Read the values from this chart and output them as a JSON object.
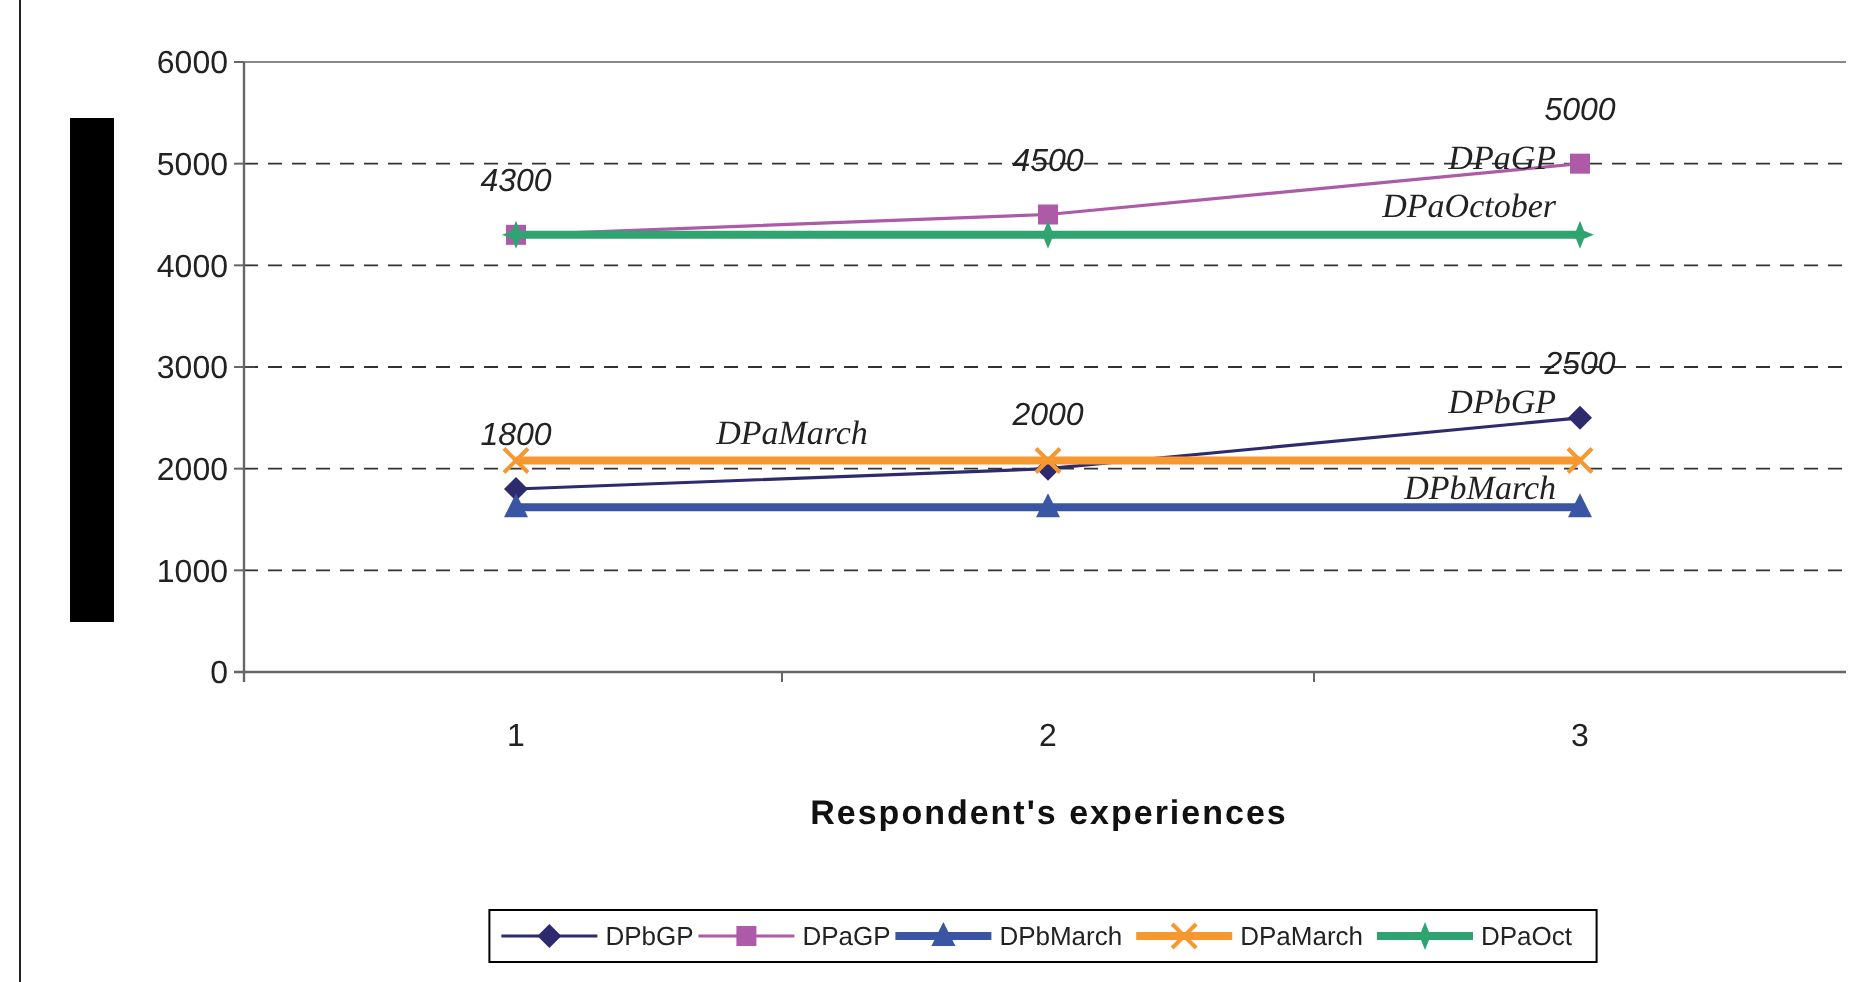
{
  "chart_data": {
    "type": "line",
    "xlabel": "Respondent's experiences",
    "categories": [
      "1",
      "2",
      "3"
    ],
    "ylim": [
      0,
      6000
    ],
    "yticks": [
      0,
      1000,
      2000,
      3000,
      4000,
      5000,
      6000
    ],
    "grid": "y",
    "legend": "bottom",
    "series": [
      {
        "name": "DPbGP",
        "color": "#2e2a6e",
        "marker": "diamond",
        "values": [
          1800,
          2000,
          2500
        ],
        "value_labels": [
          "1800",
          "2000",
          "2500"
        ]
      },
      {
        "name": "DPaGP",
        "color": "#ad5aa8",
        "marker": "square",
        "values": [
          4300,
          4500,
          5000
        ],
        "value_labels": [
          "4300",
          "4500",
          "5000"
        ]
      },
      {
        "name": "DPbMarch",
        "color": "#3a55a4",
        "marker": "triangle",
        "values": [
          1620,
          1620,
          1620
        ]
      },
      {
        "name": "DPaMarch",
        "color": "#f7972f",
        "marker": "cross",
        "values": [
          2080,
          2080,
          2080
        ]
      },
      {
        "name": "DPaOct",
        "color": "#2fa370",
        "marker": "star",
        "values": [
          4300,
          4300,
          4300
        ]
      }
    ],
    "annotations": [
      {
        "text": "DPaGP",
        "x": "3",
        "y": 4950
      },
      {
        "text": "DPaOctober",
        "x": "3",
        "y": 4480
      },
      {
        "text": "DPbGP",
        "x": "3",
        "y": 2550
      },
      "DPaMarch",
      {
        "text": "DPbMarch",
        "x": "3",
        "y": 1700
      }
    ]
  }
}
